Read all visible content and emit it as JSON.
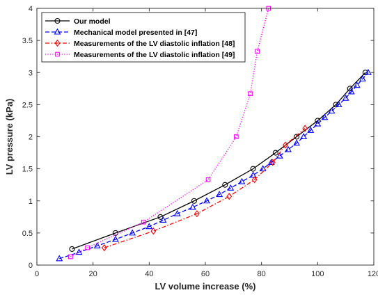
{
  "chart_data": {
    "type": "line",
    "xlabel": "LV volume increase (%)",
    "ylabel": "LV pressure (kPa)",
    "xlim": [
      0,
      120
    ],
    "ylim": [
      0,
      4
    ],
    "xticks": [
      "0",
      "20",
      "40",
      "60",
      "80",
      "100",
      "120"
    ],
    "yticks": [
      "0",
      "0.5",
      "1",
      "1.5",
      "2",
      "2.5",
      "3",
      "3.5",
      "4"
    ],
    "grid": false,
    "legend_position": "top-left",
    "series": [
      {
        "name": "Our model",
        "color": "#000000",
        "line": "solid",
        "marker": "circle",
        "x": [
          12.5,
          28,
          44,
          56,
          67,
          77,
          85,
          92.5,
          100,
          106.5,
          111.5,
          117
        ],
        "y": [
          0.25,
          0.5,
          0.75,
          1.0,
          1.25,
          1.5,
          1.75,
          2.0,
          2.25,
          2.5,
          2.75,
          3.0
        ]
      },
      {
        "name": "Mechanical model presented in [47]",
        "color": "#0000ff",
        "line": "dashed",
        "marker": "triangle",
        "x": [
          8,
          15,
          21.5,
          28,
          34,
          40,
          45,
          50,
          55.5,
          60.5,
          65,
          69,
          73,
          77,
          80.5,
          83.5,
          86.5,
          89.5,
          92.5,
          95,
          97.5,
          100,
          102.5,
          105,
          107.5,
          110,
          112,
          114,
          116,
          118
        ],
        "y": [
          0.1,
          0.2,
          0.3,
          0.4,
          0.5,
          0.6,
          0.7,
          0.8,
          0.9,
          1.0,
          1.1,
          1.2,
          1.3,
          1.4,
          1.5,
          1.6,
          1.7,
          1.8,
          1.9,
          2.0,
          2.1,
          2.2,
          2.3,
          2.4,
          2.5,
          2.6,
          2.7,
          2.8,
          2.9,
          3.0
        ]
      },
      {
        "name": "Measurements of the LV diastolic inflation [48]",
        "color": "#ff0000",
        "line": "dashdot",
        "marker": "diamond",
        "x": [
          24,
          41.5,
          57,
          68.5,
          77.5,
          84,
          88.5,
          95.5
        ],
        "y": [
          0.27,
          0.53,
          0.8,
          1.07,
          1.33,
          1.6,
          1.87,
          2.13
        ]
      },
      {
        "name": "Measurements of the LV diastolic inflation [49]",
        "color": "#ff00ff",
        "line": "dotted",
        "marker": "square",
        "x": [
          12,
          18,
          38,
          61,
          71,
          76,
          78.5,
          82.5
        ],
        "y": [
          0.13,
          0.27,
          0.67,
          1.33,
          2.0,
          2.67,
          3.33,
          4.0
        ]
      }
    ]
  }
}
